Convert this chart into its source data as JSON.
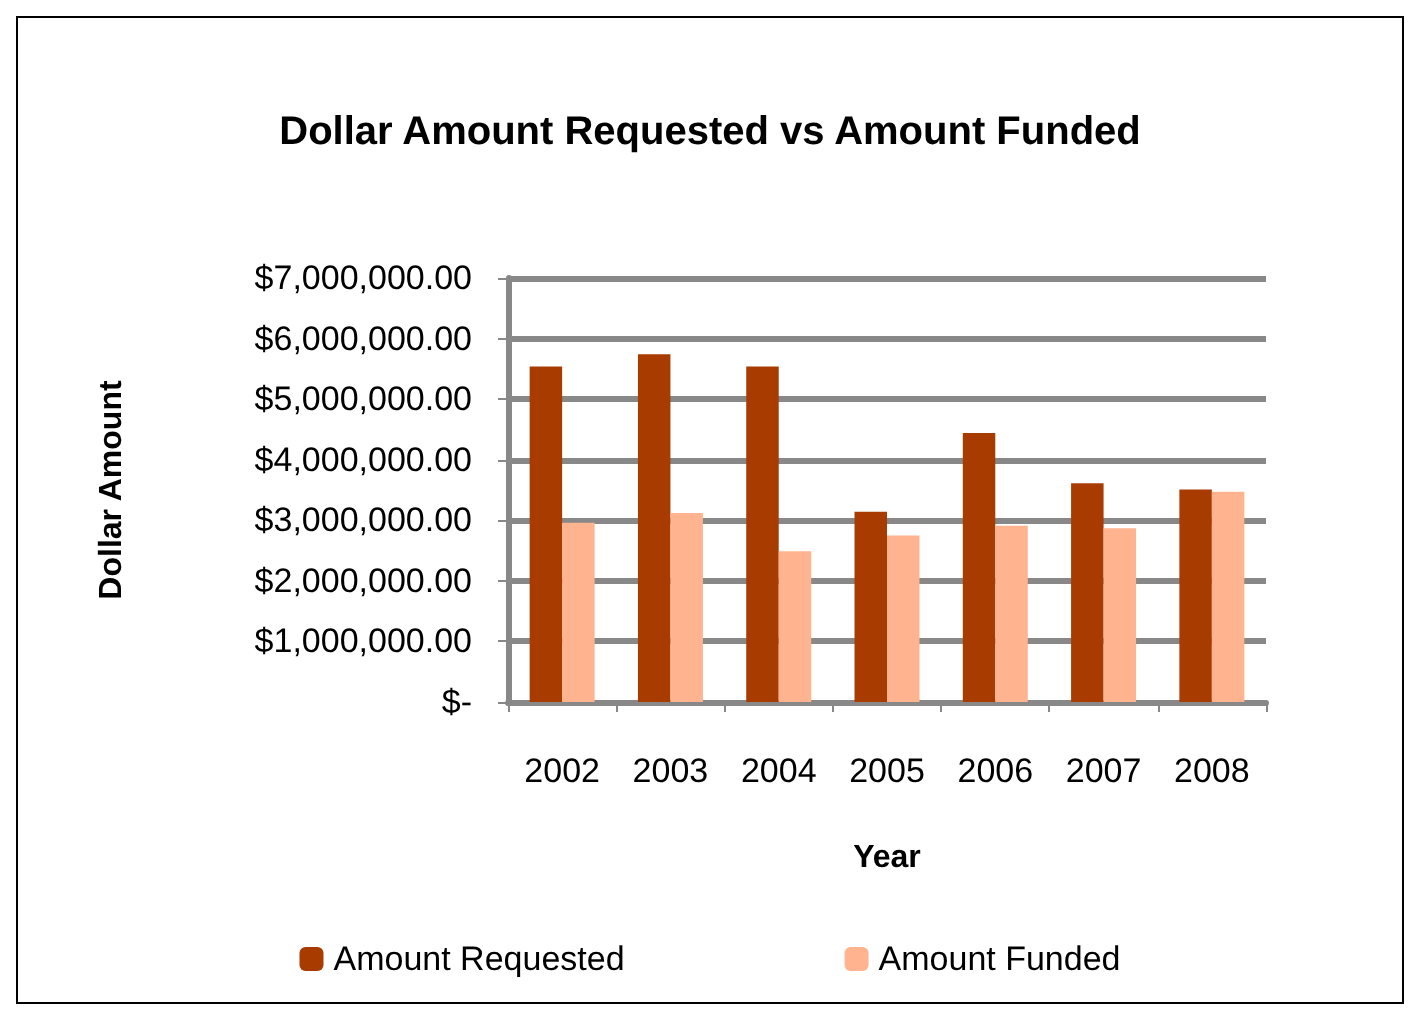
{
  "chart_data": {
    "type": "bar",
    "title": "Dollar Amount Requested vs Amount Funded",
    "xlabel": "Year",
    "ylabel": "Dollar Amount",
    "categories": [
      "2002",
      "2003",
      "2004",
      "2005",
      "2006",
      "2007",
      "2008"
    ],
    "series": [
      {
        "name": "Amount Requested",
        "color": "#a83c00",
        "values": [
          5540000,
          5740000,
          5540000,
          3140000,
          4440000,
          3610000,
          3510000
        ]
      },
      {
        "name": "Amount Funded",
        "color": "#ffb38e",
        "values": [
          2960000,
          3120000,
          2490000,
          2750000,
          2910000,
          2870000,
          3470000
        ]
      }
    ],
    "ylim": [
      0,
      7000000
    ],
    "yticks": [
      {
        "value": 0,
        "label": "$-"
      },
      {
        "value": 1000000,
        "label": "$1,000,000.00"
      },
      {
        "value": 2000000,
        "label": "$2,000,000.00"
      },
      {
        "value": 3000000,
        "label": "$3,000,000.00"
      },
      {
        "value": 4000000,
        "label": "$4,000,000.00"
      },
      {
        "value": 5000000,
        "label": "$5,000,000.00"
      },
      {
        "value": 6000000,
        "label": "$6,000,000.00"
      },
      {
        "value": 7000000,
        "label": "$7,000,000.00"
      }
    ],
    "grid": "y",
    "legend": "bottom"
  }
}
